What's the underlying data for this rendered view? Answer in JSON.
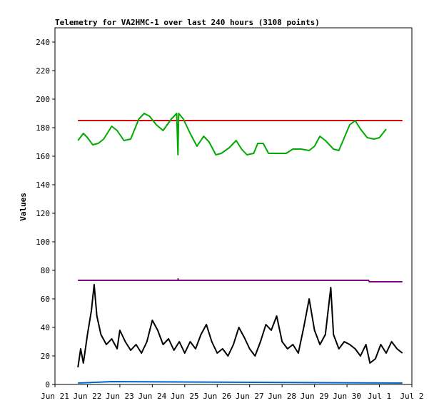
{
  "chart_data": {
    "type": "line",
    "title": "Telemetry for VA2HMC-1 over last 240 hours (3108 points)",
    "ylabel": "Values",
    "xlabel": "",
    "ylim": [
      0,
      250
    ],
    "yticks": [
      0,
      20,
      40,
      60,
      80,
      100,
      120,
      140,
      160,
      180,
      200,
      220,
      240
    ],
    "xlim": [
      "2023-06-21",
      "2023-07-02"
    ],
    "xticks": [
      {
        "date": "2023-06-21",
        "label": "Jun 21"
      },
      {
        "date": "2023-06-22",
        "label": "Jun 22"
      },
      {
        "date": "2023-06-23",
        "label": "Jun 23"
      },
      {
        "date": "2023-06-24",
        "label": "Jun 24"
      },
      {
        "date": "2023-06-25",
        "label": "Jun 25"
      },
      {
        "date": "2023-06-26",
        "label": "Jun 26"
      },
      {
        "date": "2023-06-27",
        "label": "Jun 27"
      },
      {
        "date": "2023-06-28",
        "label": "Jun 28"
      },
      {
        "date": "2023-06-29",
        "label": "Jun 29"
      },
      {
        "date": "2023-06-30",
        "label": "Jun 30"
      },
      {
        "date": "2023-07-01",
        "label": "Jul 1"
      },
      {
        "date": "2023-07-02",
        "label": "Jul 2"
      }
    ],
    "grid": false,
    "legend": "none",
    "series": [
      {
        "color": "#dd0000",
        "points": [
          [
            "2023-06-21T17:00",
            185
          ],
          [
            "2023-07-01T17:00",
            185
          ]
        ]
      },
      {
        "color": "#00aa00",
        "points": [
          [
            "2023-06-21T17:00",
            171
          ],
          [
            "2023-06-21T21:00",
            176
          ],
          [
            "2023-06-22T00:00",
            173
          ],
          [
            "2023-06-22T04:00",
            168
          ],
          [
            "2023-06-22T08:00",
            169
          ],
          [
            "2023-06-22T12:00",
            172
          ],
          [
            "2023-06-22T18:00",
            181
          ],
          [
            "2023-06-22T22:00",
            178
          ],
          [
            "2023-06-23T03:00",
            171
          ],
          [
            "2023-06-23T08:00",
            172
          ],
          [
            "2023-06-23T14:00",
            186
          ],
          [
            "2023-06-23T18:00",
            190
          ],
          [
            "2023-06-23T22:00",
            188
          ],
          [
            "2023-06-24T03:00",
            182
          ],
          [
            "2023-06-24T08:00",
            178
          ],
          [
            "2023-06-24T14:00",
            186
          ],
          [
            "2023-06-24T18:00",
            190
          ],
          [
            "2023-06-24T19:00",
            161
          ],
          [
            "2023-06-24T19:30",
            190
          ],
          [
            "2023-06-24T23:00",
            186
          ],
          [
            "2023-06-25T04:00",
            176
          ],
          [
            "2023-06-25T09:00",
            167
          ],
          [
            "2023-06-25T14:00",
            174
          ],
          [
            "2023-06-25T18:00",
            170
          ],
          [
            "2023-06-25T23:00",
            161
          ],
          [
            "2023-06-26T03:00",
            162
          ],
          [
            "2023-06-26T09:00",
            166
          ],
          [
            "2023-06-26T14:00",
            171
          ],
          [
            "2023-06-26T18:00",
            165
          ],
          [
            "2023-06-26T22:00",
            161
          ],
          [
            "2023-06-27T03:00",
            162
          ],
          [
            "2023-06-27T06:00",
            169
          ],
          [
            "2023-06-27T10:00",
            169
          ],
          [
            "2023-06-27T14:00",
            162
          ],
          [
            "2023-06-27T20:00",
            162
          ],
          [
            "2023-06-28T03:00",
            162
          ],
          [
            "2023-06-28T08:00",
            165
          ],
          [
            "2023-06-28T14:00",
            165
          ],
          [
            "2023-06-28T20:00",
            164
          ],
          [
            "2023-06-29T00:00",
            167
          ],
          [
            "2023-06-29T04:00",
            174
          ],
          [
            "2023-06-29T08:00",
            171
          ],
          [
            "2023-06-29T14:00",
            165
          ],
          [
            "2023-06-29T18:00",
            164
          ],
          [
            "2023-06-29T22:00",
            173
          ],
          [
            "2023-06-30T02:00",
            182
          ],
          [
            "2023-06-30T06:00",
            185
          ],
          [
            "2023-06-30T10:00",
            179
          ],
          [
            "2023-06-30T15:00",
            173
          ],
          [
            "2023-06-30T20:00",
            172
          ],
          [
            "2023-07-01T00:00",
            173
          ],
          [
            "2023-07-01T05:00",
            179
          ]
        ]
      },
      {
        "color": "#800080",
        "points": [
          [
            "2023-06-21T17:00",
            73
          ],
          [
            "2023-06-24T19:00",
            73
          ],
          [
            "2023-06-24T19:05",
            74
          ],
          [
            "2023-06-24T19:10",
            73
          ],
          [
            "2023-06-30T16:00",
            73
          ],
          [
            "2023-06-30T16:30",
            72
          ],
          [
            "2023-07-01T17:00",
            72
          ]
        ]
      },
      {
        "color": "#000000",
        "points": [
          [
            "2023-06-21T17:00",
            12
          ],
          [
            "2023-06-21T19:00",
            25
          ],
          [
            "2023-06-21T21:00",
            15
          ],
          [
            "2023-06-22T00:00",
            35
          ],
          [
            "2023-06-22T03:00",
            52
          ],
          [
            "2023-06-22T05:00",
            70
          ],
          [
            "2023-06-22T07:00",
            48
          ],
          [
            "2023-06-22T10:00",
            35
          ],
          [
            "2023-06-22T14:00",
            28
          ],
          [
            "2023-06-22T18:00",
            32
          ],
          [
            "2023-06-22T22:00",
            25
          ],
          [
            "2023-06-23T00:00",
            38
          ],
          [
            "2023-06-23T04:00",
            30
          ],
          [
            "2023-06-23T08:00",
            24
          ],
          [
            "2023-06-23T12:00",
            28
          ],
          [
            "2023-06-23T16:00",
            22
          ],
          [
            "2023-06-23T20:00",
            30
          ],
          [
            "2023-06-24T00:00",
            45
          ],
          [
            "2023-06-24T04:00",
            38
          ],
          [
            "2023-06-24T08:00",
            28
          ],
          [
            "2023-06-24T12:00",
            32
          ],
          [
            "2023-06-24T16:00",
            24
          ],
          [
            "2023-06-24T20:00",
            30
          ],
          [
            "2023-06-25T00:00",
            22
          ],
          [
            "2023-06-25T04:00",
            30
          ],
          [
            "2023-06-25T08:00",
            25
          ],
          [
            "2023-06-25T12:00",
            35
          ],
          [
            "2023-06-25T16:00",
            42
          ],
          [
            "2023-06-25T20:00",
            30
          ],
          [
            "2023-06-26T00:00",
            22
          ],
          [
            "2023-06-26T04:00",
            25
          ],
          [
            "2023-06-26T08:00",
            20
          ],
          [
            "2023-06-26T12:00",
            28
          ],
          [
            "2023-06-26T16:00",
            40
          ],
          [
            "2023-06-26T20:00",
            33
          ],
          [
            "2023-06-27T00:00",
            25
          ],
          [
            "2023-06-27T04:00",
            20
          ],
          [
            "2023-06-27T08:00",
            30
          ],
          [
            "2023-06-27T12:00",
            42
          ],
          [
            "2023-06-27T16:00",
            38
          ],
          [
            "2023-06-27T20:00",
            48
          ],
          [
            "2023-06-28T00:00",
            30
          ],
          [
            "2023-06-28T04:00",
            25
          ],
          [
            "2023-06-28T08:00",
            28
          ],
          [
            "2023-06-28T12:00",
            22
          ],
          [
            "2023-06-28T16:00",
            40
          ],
          [
            "2023-06-28T20:00",
            60
          ],
          [
            "2023-06-29T00:00",
            38
          ],
          [
            "2023-06-29T04:00",
            28
          ],
          [
            "2023-06-29T08:00",
            35
          ],
          [
            "2023-06-29T12:00",
            68
          ],
          [
            "2023-06-29T14:00",
            35
          ],
          [
            "2023-06-29T18:00",
            25
          ],
          [
            "2023-06-29T22:00",
            30
          ],
          [
            "2023-06-30T02:00",
            28
          ],
          [
            "2023-06-30T06:00",
            25
          ],
          [
            "2023-06-30T10:00",
            20
          ],
          [
            "2023-06-30T14:00",
            28
          ],
          [
            "2023-06-30T17:00",
            15
          ],
          [
            "2023-06-30T21:00",
            18
          ],
          [
            "2023-07-01T01:00",
            28
          ],
          [
            "2023-07-01T05:00",
            22
          ],
          [
            "2023-07-01T09:00",
            30
          ],
          [
            "2023-07-01T13:00",
            25
          ],
          [
            "2023-07-01T17:00",
            22
          ]
        ]
      },
      {
        "color": "#0066cc",
        "points": [
          [
            "2023-06-21T17:00",
            1
          ],
          [
            "2023-06-22T18:00",
            2
          ],
          [
            "2023-07-01T17:00",
            1
          ]
        ]
      }
    ]
  }
}
